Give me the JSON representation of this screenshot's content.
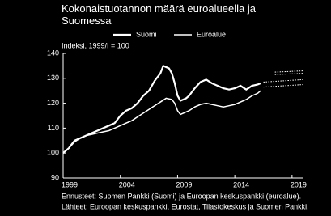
{
  "chart_data": {
    "type": "line",
    "title": "Kokonaistuotannon määrä euroalueella ja Suomessa",
    "subtitle": "Indeksi, 1999/I = 100",
    "notes": [
      "Ennusteet: Suomen Pankki (Suomi) ja Euroopan keskuspankki (euroalue).",
      "Lähteet: Euroopan keskuspankki, Eurostat, Tilastokeskus ja Suomen Pankki."
    ],
    "xlim": [
      1999,
      2020
    ],
    "xticks": [
      1999,
      2004,
      2009,
      2014,
      2019
    ],
    "ylim": [
      90,
      140
    ],
    "yticks": [
      90,
      100,
      110,
      120,
      130,
      140
    ],
    "series": [
      {
        "name": "Suomi",
        "color": "#ffffff",
        "width": 2.2,
        "x": [
          1999,
          1999.5,
          2000,
          2000.5,
          2001,
          2001.5,
          2002,
          2002.5,
          2003,
          2003.5,
          2004,
          2004.5,
          2005,
          2005.5,
          2006,
          2006.5,
          2007,
          2007.5,
          2007.75,
          2008,
          2008.25,
          2008.5,
          2008.75,
          2009,
          2009.25,
          2009.5,
          2009.75,
          2010,
          2010.5,
          2011,
          2011.5,
          2012,
          2012.5,
          2013,
          2013.5,
          2014,
          2014.5,
          2015,
          2015.5,
          2016,
          2016.25
        ],
        "values": [
          100,
          102,
          105,
          106,
          107,
          108,
          109,
          110,
          111,
          112,
          115,
          117,
          118,
          120,
          123,
          125,
          129,
          132,
          135,
          134.5,
          134,
          132,
          128,
          123,
          121,
          121.5,
          122,
          123,
          126,
          128.5,
          129.5,
          128,
          127,
          126,
          125.5,
          126,
          127,
          125.5,
          127,
          127.5,
          128
        ]
      },
      {
        "name": "Euroalue",
        "color": "#ffffff",
        "width": 1.5,
        "x": [
          1999,
          1999.5,
          2000,
          2000.5,
          2001,
          2001.5,
          2002,
          2002.5,
          2003,
          2003.5,
          2004,
          2004.5,
          2005,
          2005.5,
          2006,
          2006.5,
          2007,
          2007.5,
          2008,
          2008.5,
          2008.75,
          2009,
          2009.25,
          2009.5,
          2010,
          2010.5,
          2011,
          2011.5,
          2012,
          2012.5,
          2013,
          2013.5,
          2014,
          2014.5,
          2015,
          2015.5,
          2016,
          2016.25
        ],
        "values": [
          100,
          102,
          104.5,
          106,
          107,
          107.5,
          108,
          108.5,
          109,
          110,
          111,
          112,
          113,
          114.5,
          116,
          117.5,
          119,
          120.5,
          122,
          121.5,
          120,
          117,
          115.5,
          116,
          117,
          118.5,
          119.5,
          120,
          119.5,
          119,
          118.5,
          119,
          119.5,
          120.5,
          121.5,
          123,
          124,
          125
        ]
      },
      {
        "color": "#ffffff",
        "width": 1,
        "dash": true,
        "x": [
          2017.5,
          2020
        ],
        "values": [
          132.5,
          133
        ]
      },
      {
        "color": "#ffffff",
        "width": 1,
        "dash": true,
        "x": [
          2017.5,
          2020
        ],
        "values": [
          131.5,
          132
        ]
      },
      {
        "color": "#ffffff",
        "width": 1,
        "dash": true,
        "x": [
          2016.5,
          2020
        ],
        "values": [
          128.5,
          129.5
        ]
      },
      {
        "color": "#ffffff",
        "width": 1,
        "dash": true,
        "x": [
          2016.5,
          2020
        ],
        "values": [
          126.5,
          127.5
        ]
      }
    ]
  }
}
